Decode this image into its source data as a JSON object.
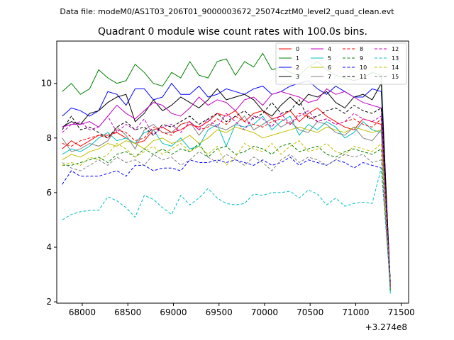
{
  "chart_data": {
    "type": "line",
    "suptitle": "Data file: modeM0/AS1T03_206T01_9000003672_25074cztM0_level2_quad_clean.evt",
    "title": "Quadrant 0 module wise count rates with 100.0s bins.",
    "xlabel": "",
    "ylabel": "",
    "x_offset_label": "+3.274e8",
    "xlim": [
      67720,
      71580
    ],
    "ylim": [
      1.95,
      11.55
    ],
    "xticks": [
      68000,
      68500,
      69000,
      69500,
      70000,
      70500,
      71000,
      71500
    ],
    "xtick_labels": [
      "68000",
      "68500",
      "69000",
      "69500",
      "70000",
      "70500",
      "71000",
      "71500"
    ],
    "yticks": [
      2,
      4,
      6,
      8,
      10
    ],
    "ytick_labels": [
      "2",
      "4",
      "6",
      "8",
      "10"
    ],
    "legend_position": "top-right",
    "x_start": 67780,
    "x_step": 100,
    "series": [
      {
        "name": "0",
        "color": "#ff0000",
        "dash": false,
        "values": [
          7.6,
          7.9,
          7.7,
          7.9,
          8.1,
          8.1,
          8.2,
          8.0,
          7.8,
          7.9,
          8.3,
          8.4,
          8.2,
          8.3,
          8.5,
          8.4,
          8.6,
          8.9,
          8.8,
          9.0,
          8.6,
          8.9,
          9.0,
          8.7,
          8.8,
          9.0,
          8.6,
          8.9,
          9.1,
          8.8,
          8.6,
          8.4,
          8.3,
          8.7,
          8.6,
          8.5,
          2.6
        ]
      },
      {
        "name": "1",
        "color": "#008000",
        "dash": false,
        "values": [
          9.7,
          10.0,
          9.6,
          9.8,
          10.5,
          10.2,
          10.0,
          10.1,
          10.7,
          10.4,
          10.0,
          9.9,
          10.4,
          10.2,
          10.8,
          10.3,
          10.2,
          10.8,
          10.9,
          10.3,
          10.8,
          10.6,
          11.1,
          10.5,
          10.6,
          10.4,
          10.3,
          10.6,
          10.8,
          10.5,
          10.3,
          10.2,
          10.1,
          10.2,
          10.4,
          10.3,
          2.4
        ]
      },
      {
        "name": "2",
        "color": "#0000ff",
        "dash": false,
        "values": [
          8.8,
          9.1,
          9.0,
          8.8,
          9.0,
          9.7,
          9.6,
          9.2,
          9.8,
          9.8,
          9.4,
          9.5,
          10.0,
          9.6,
          9.6,
          9.9,
          9.5,
          9.6,
          9.8,
          9.7,
          9.6,
          9.8,
          9.9,
          9.6,
          9.7,
          9.9,
          10.0,
          10.1,
          9.8,
          9.6,
          9.9,
          9.7,
          9.5,
          9.5,
          9.8,
          9.7,
          2.7
        ]
      },
      {
        "name": "3",
        "color": "#000000",
        "dash": false,
        "values": [
          8.4,
          8.6,
          8.5,
          8.9,
          9.0,
          9.3,
          9.5,
          9.6,
          8.6,
          8.9,
          9.4,
          9.0,
          9.2,
          9.5,
          9.3,
          9.1,
          9.4,
          9.8,
          9.4,
          9.5,
          9.6,
          9.4,
          9.0,
          8.8,
          9.2,
          9.5,
          9.2,
          9.6,
          9.5,
          9.7,
          9.3,
          9.1,
          9.5,
          9.6,
          9.4,
          10.0,
          2.6
        ]
      },
      {
        "name": "4",
        "color": "#c000c0",
        "dash": false,
        "values": [
          8.4,
          8.5,
          8.5,
          8.6,
          8.4,
          8.8,
          9.2,
          8.9,
          8.7,
          9.0,
          9.3,
          9.2,
          8.9,
          8.8,
          9.1,
          9.5,
          9.2,
          9.4,
          9.3,
          9.0,
          9.4,
          9.5,
          9.2,
          9.6,
          9.7,
          9.6,
          9.5,
          9.3,
          9.4,
          9.8,
          9.6,
          9.7,
          9.5,
          9.3,
          9.2,
          9.1,
          2.5
        ]
      },
      {
        "name": "5",
        "color": "#00bfbf",
        "dash": false,
        "values": [
          7.4,
          7.6,
          7.5,
          7.7,
          8.0,
          8.2,
          7.9,
          8.0,
          7.8,
          8.2,
          8.3,
          7.8,
          7.7,
          8.0,
          7.6,
          7.7,
          8.3,
          8.5,
          7.7,
          8.5,
          8.4,
          8.5,
          8.8,
          8.3,
          8.6,
          8.8,
          8.1,
          8.5,
          8.3,
          8.6,
          8.4,
          8.0,
          8.2,
          8.6,
          8.3,
          8.2,
          2.3
        ]
      },
      {
        "name": "6",
        "color": "#bfbf00",
        "dash": false,
        "values": [
          7.2,
          7.4,
          7.3,
          7.5,
          7.6,
          7.8,
          7.7,
          7.9,
          7.8,
          7.6,
          7.9,
          8.0,
          7.8,
          7.9,
          8.1,
          7.8,
          8.0,
          8.3,
          8.2,
          8.4,
          8.3,
          8.2,
          8.0,
          8.1,
          8.2,
          8.3,
          8.4,
          8.3,
          8.2,
          8.4,
          8.3,
          8.2,
          8.4,
          8.3,
          8.2,
          8.3,
          2.6
        ]
      },
      {
        "name": "7",
        "color": "#808080",
        "dash": false,
        "values": [
          8.0,
          7.5,
          7.6,
          7.8,
          7.7,
          7.9,
          8.4,
          8.1,
          7.6,
          8.3,
          8.5,
          8.2,
          8.2,
          8.5,
          8.6,
          8.1,
          8.5,
          8.4,
          8.3,
          8.5,
          8.8,
          8.3,
          8.5,
          8.7,
          8.4,
          8.6,
          8.3,
          8.2,
          8.6,
          8.5,
          8.2,
          8.1,
          8.4,
          8.0,
          7.9,
          8.3,
          2.7
        ]
      },
      {
        "name": "8",
        "color": "#ff0000",
        "dash": true,
        "values": [
          7.8,
          7.7,
          7.9,
          8.0,
          8.1,
          8.0,
          8.3,
          8.2,
          7.9,
          8.0,
          8.4,
          8.2,
          8.1,
          8.5,
          8.6,
          8.3,
          8.4,
          8.7,
          8.5,
          8.8,
          8.6,
          8.5,
          8.4,
          8.6,
          8.7,
          8.5,
          8.9,
          8.8,
          8.6,
          8.7,
          8.5,
          8.6,
          8.7,
          8.5,
          8.4,
          8.7,
          2.5
        ]
      },
      {
        "name": "9",
        "color": "#008000",
        "dash": true,
        "values": [
          7.0,
          7.0,
          7.1,
          7.2,
          7.3,
          7.1,
          7.4,
          7.5,
          7.3,
          7.6,
          7.4,
          7.6,
          7.4,
          7.6,
          7.5,
          7.8,
          7.3,
          7.6,
          7.7,
          7.4,
          7.5,
          7.7,
          7.6,
          7.4,
          7.7,
          7.8,
          7.5,
          7.6,
          7.7,
          7.4,
          7.3,
          7.5,
          7.6,
          7.5,
          7.4,
          7.6,
          2.4
        ]
      },
      {
        "name": "10",
        "color": "#0000ff",
        "dash": true,
        "values": [
          6.3,
          6.8,
          6.6,
          6.6,
          6.6,
          6.7,
          6.8,
          6.6,
          7.0,
          7.0,
          6.8,
          6.9,
          6.9,
          6.8,
          7.2,
          7.1,
          7.1,
          7.2,
          7.1,
          7.2,
          7.1,
          7.0,
          7.2,
          7.0,
          7.1,
          7.3,
          7.0,
          7.2,
          7.1,
          7.0,
          7.2,
          7.1,
          6.9,
          7.1,
          7.0,
          6.9,
          2.6
        ]
      },
      {
        "name": "11",
        "color": "#000000",
        "dash": true,
        "values": [
          8.3,
          8.8,
          8.3,
          8.4,
          8.2,
          8.0,
          8.4,
          8.6,
          8.3,
          8.4,
          8.1,
          8.5,
          8.4,
          8.6,
          8.8,
          8.5,
          8.7,
          8.9,
          8.6,
          8.8,
          9.0,
          8.7,
          8.9,
          9.3,
          8.9,
          9.0,
          9.4,
          8.7,
          8.8,
          9.0,
          9.1,
          8.9,
          9.2,
          9.0,
          8.9,
          9.1,
          2.7
        ]
      },
      {
        "name": "12",
        "color": "#c000c0",
        "dash": true,
        "values": [
          8.2,
          8.5,
          8.6,
          8.3,
          8.4,
          8.8,
          8.2,
          8.5,
          8.3,
          8.7,
          8.1,
          8.4,
          8.5,
          8.2,
          8.6,
          8.3,
          8.7,
          8.4,
          8.9,
          8.6,
          8.3,
          8.8,
          8.7,
          8.4,
          8.9,
          8.5,
          8.8,
          9.0,
          8.6,
          8.7,
          8.5,
          8.6,
          8.9,
          8.7,
          8.6,
          8.8,
          2.6
        ]
      },
      {
        "name": "13",
        "color": "#00bfbf",
        "dash": true,
        "values": [
          5.0,
          5.2,
          5.3,
          5.35,
          5.35,
          5.85,
          5.7,
          5.45,
          5.1,
          5.9,
          5.75,
          5.45,
          5.2,
          5.9,
          5.55,
          5.8,
          6.15,
          5.8,
          5.6,
          5.55,
          5.6,
          5.95,
          5.9,
          6.0,
          6.0,
          6.05,
          5.8,
          6.1,
          5.95,
          5.55,
          5.8,
          5.5,
          5.6,
          5.65,
          5.6,
          6.9,
          2.6
        ]
      },
      {
        "name": "14",
        "color": "#bfbf00",
        "dash": true,
        "values": [
          7.0,
          7.1,
          7.0,
          7.3,
          7.2,
          7.4,
          7.8,
          7.6,
          7.3,
          7.5,
          7.7,
          7.4,
          7.6,
          7.8,
          7.5,
          7.7,
          7.4,
          7.7,
          7.0,
          7.3,
          7.8,
          7.6,
          7.5,
          7.8,
          7.4,
          7.7,
          7.9,
          7.5,
          7.6,
          7.8,
          7.5,
          7.4,
          7.7,
          7.6,
          7.5,
          7.8,
          2.6
        ]
      },
      {
        "name": "15",
        "color": "#808080",
        "dash": true,
        "values": [
          7.1,
          6.9,
          6.8,
          7.0,
          7.2,
          7.0,
          7.3,
          7.1,
          7.2,
          7.0,
          7.4,
          7.2,
          7.3,
          7.0,
          7.2,
          7.5,
          7.3,
          7.1,
          7.4,
          7.2,
          7.0,
          7.3,
          7.1,
          6.8,
          7.2,
          7.4,
          7.1,
          7.3,
          7.2,
          7.0,
          7.2,
          7.4,
          7.3,
          7.4,
          7.1,
          7.2,
          2.6
        ]
      }
    ]
  }
}
